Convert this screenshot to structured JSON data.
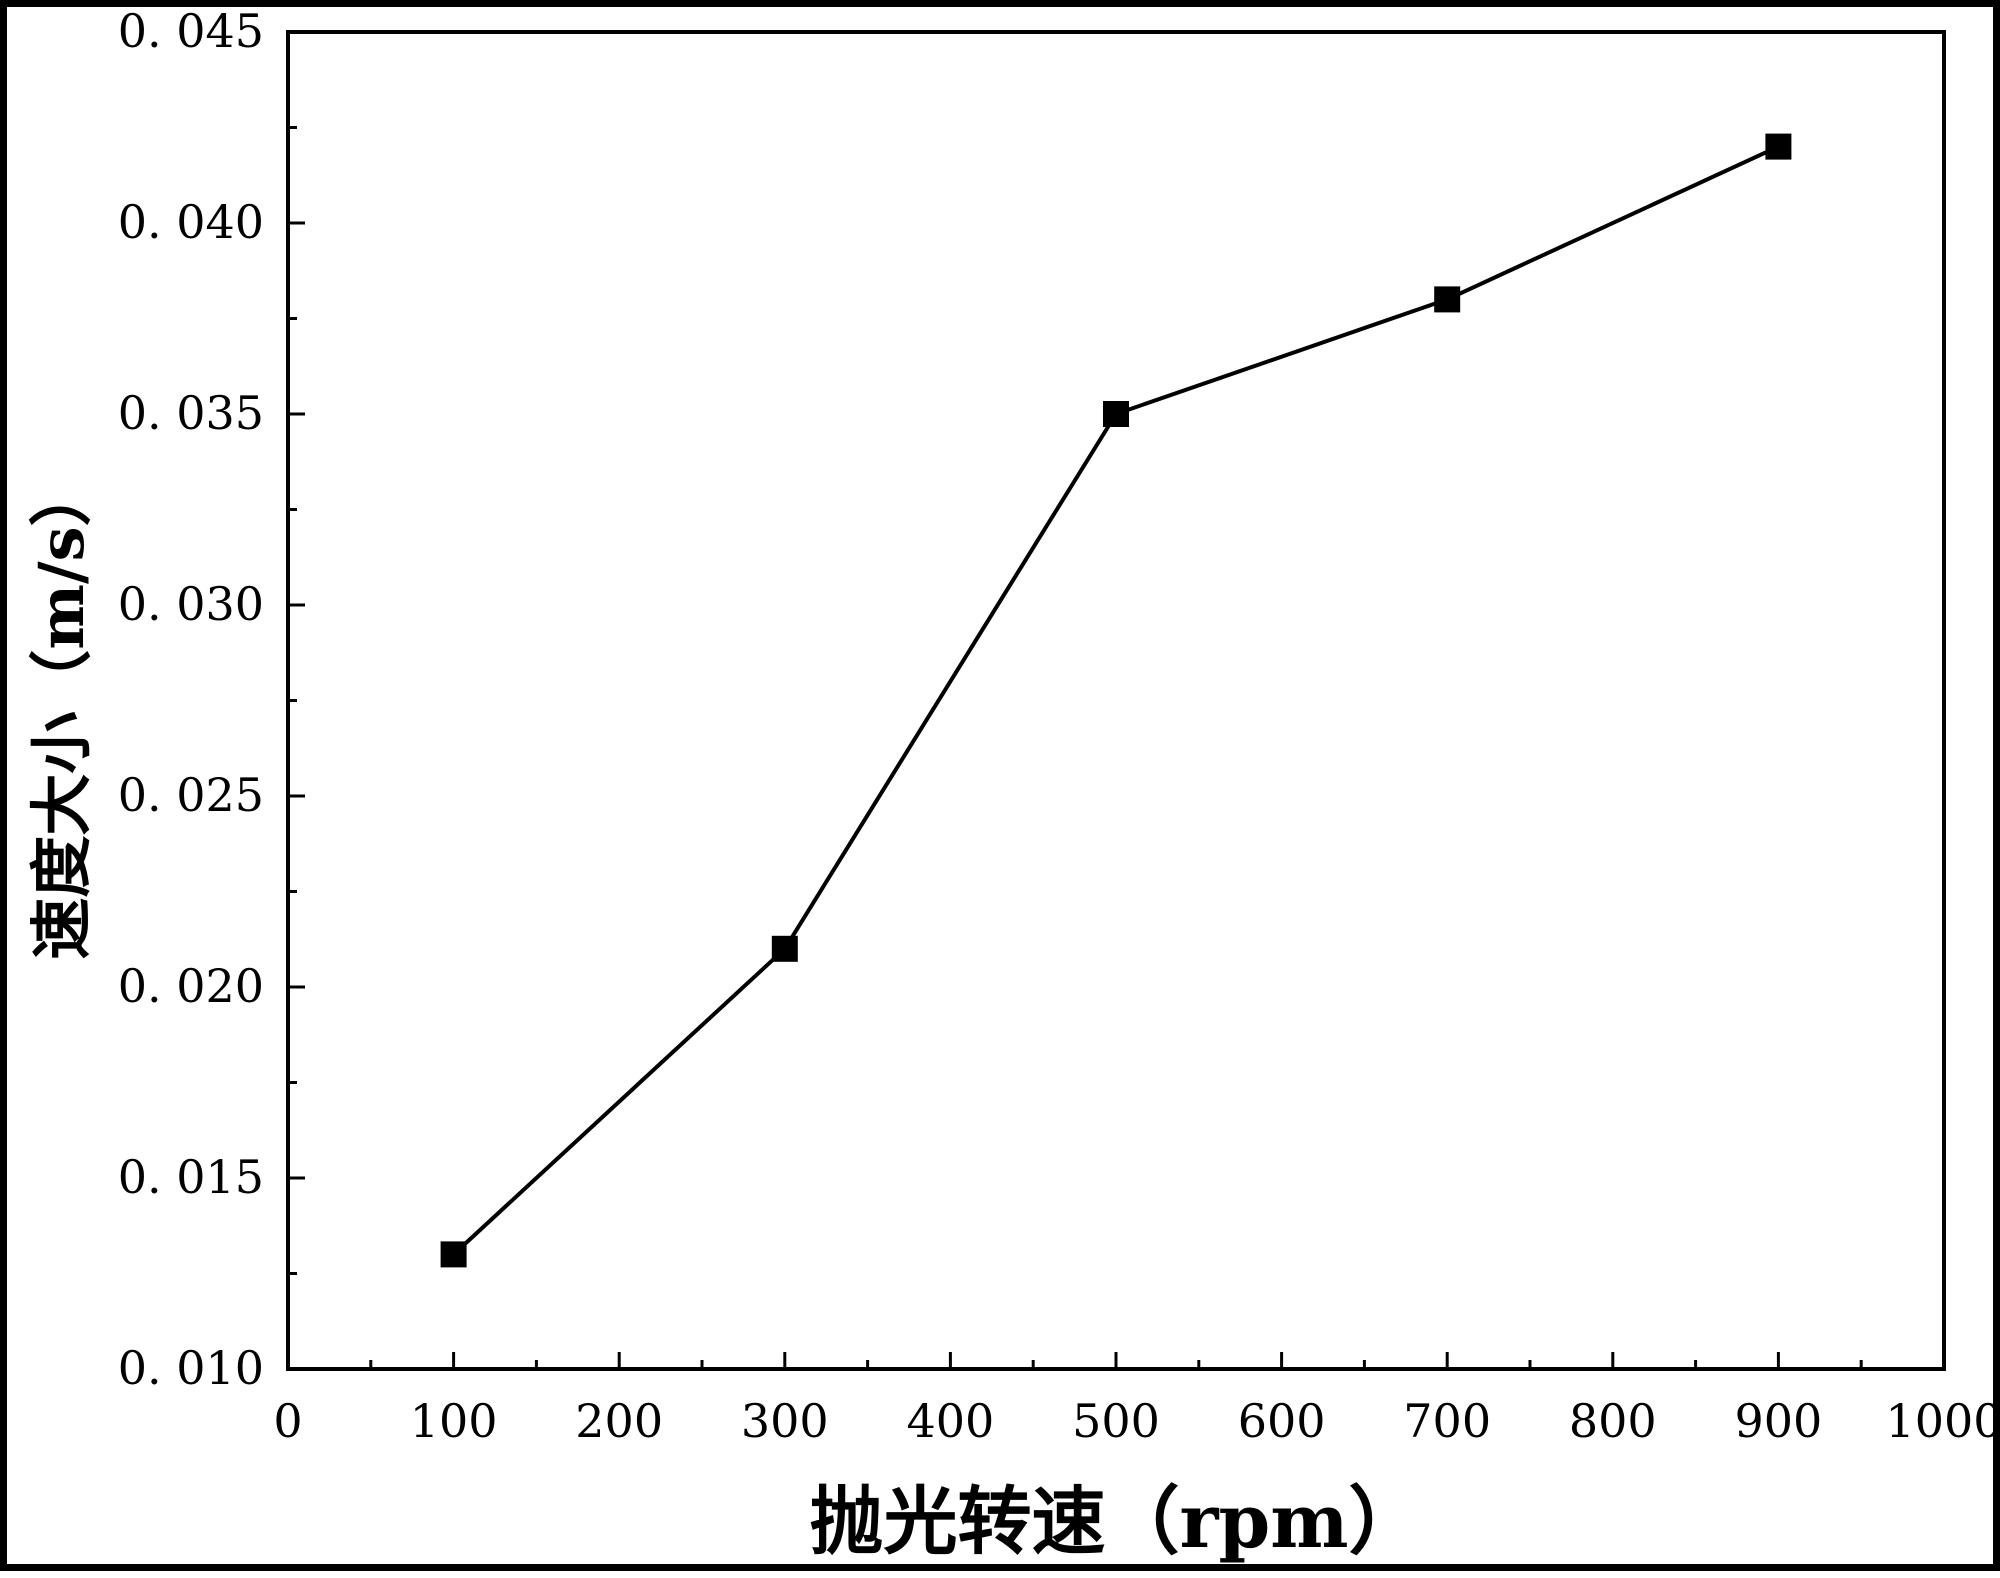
{
  "chart_data": {
    "type": "line",
    "xlabel": "抛光转速（rpm）",
    "ylabel": "速度大小（m/s）",
    "xlim": [
      0,
      1000
    ],
    "ylim": [
      0.01,
      0.045
    ],
    "x_ticks": [
      0,
      100,
      200,
      300,
      400,
      500,
      600,
      700,
      800,
      900,
      1000
    ],
    "x_tick_labels": [
      "0",
      "100",
      "200",
      "300",
      "400",
      "500",
      "600",
      "700",
      "800",
      "900",
      "1000"
    ],
    "y_ticks": [
      0.01,
      0.015,
      0.02,
      0.025,
      0.03,
      0.035,
      0.04,
      0.045
    ],
    "y_tick_labels": [
      "0. 010",
      "0. 015",
      "0. 020",
      "0. 025",
      "0. 030",
      "0. 035",
      "0. 040",
      "0. 045"
    ],
    "grid": false,
    "marker": "square",
    "color": "#000000",
    "series": [
      {
        "x": [
          100,
          300,
          500,
          700,
          900
        ],
        "y": [
          0.013,
          0.021,
          0.035,
          0.038,
          0.042
        ]
      }
    ]
  }
}
